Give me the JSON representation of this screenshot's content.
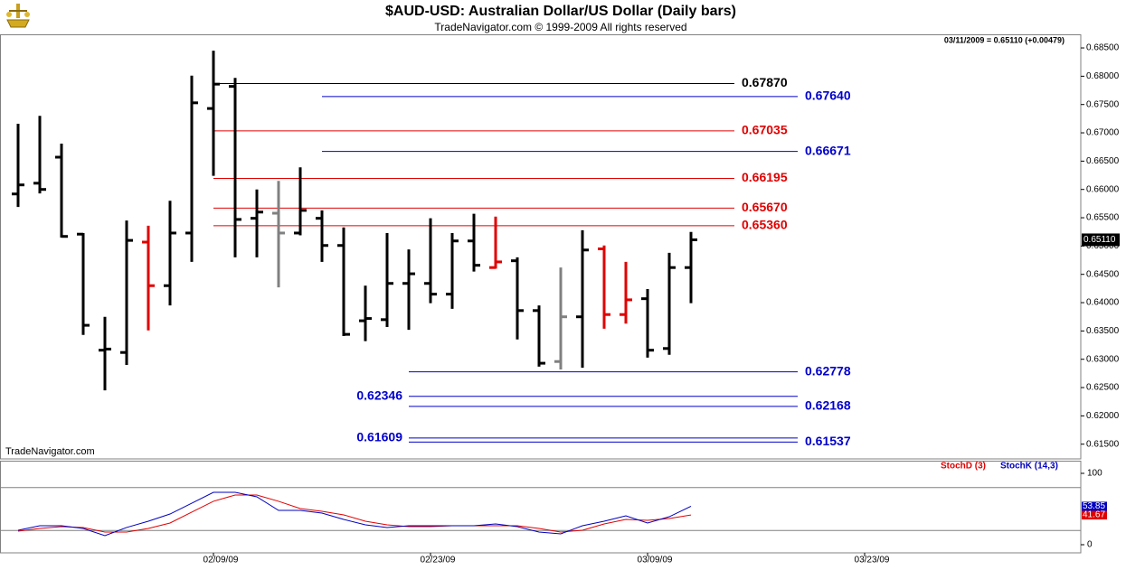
{
  "chart_data": [
    {
      "type": "ohlc",
      "title": "$AUD-USD:  Australian Dollar/US Dollar  (Daily bars)",
      "subtitle": "TradeNavigator.com © 1999-2009 All rights reserved",
      "header": "03/11/2009 = 0.65110 (+0.00479)",
      "watermark": "TradeNavigator.com",
      "x": [
        0,
        1,
        2,
        3,
        4,
        5,
        6,
        7,
        8,
        9,
        10,
        11,
        12,
        13,
        14,
        15,
        16,
        17,
        18,
        19,
        20,
        21,
        22,
        23,
        24,
        25,
        26,
        27,
        28,
        29,
        30,
        31
      ],
      "open": [
        0.6592,
        0.6611,
        0.6657,
        0.6521,
        0.6316,
        0.6312,
        0.6507,
        0.643,
        0.6523,
        0.6743,
        0.6782,
        0.6549,
        0.6558,
        0.6523,
        0.6549,
        0.6501,
        0.6368,
        0.637,
        0.6434,
        0.6434,
        0.6415,
        0.6509,
        0.6462,
        0.6474,
        0.6386,
        0.6296,
        0.6375,
        0.6495,
        0.6379,
        0.6407,
        0.6319,
        0.6462
      ],
      "high": [
        0.6716,
        0.673,
        0.6681,
        0.6523,
        0.6375,
        0.6545,
        0.6536,
        0.658,
        0.6801,
        0.6845,
        0.6797,
        0.66,
        0.6615,
        0.6639,
        0.6563,
        0.6533,
        0.643,
        0.6523,
        0.6494,
        0.6549,
        0.6523,
        0.6557,
        0.6552,
        0.648,
        0.6395,
        0.6462,
        0.6528,
        0.6501,
        0.6472,
        0.6424,
        0.6488,
        0.6525
      ],
      "low": [
        0.6569,
        0.6593,
        0.6515,
        0.6343,
        0.6245,
        0.629,
        0.6351,
        0.6395,
        0.6472,
        0.6624,
        0.648,
        0.648,
        0.6427,
        0.6519,
        0.6472,
        0.6341,
        0.6332,
        0.6357,
        0.6352,
        0.6399,
        0.6389,
        0.6455,
        0.646,
        0.6335,
        0.6287,
        0.6282,
        0.6285,
        0.6354,
        0.6363,
        0.6303,
        0.6308,
        0.6399
      ],
      "close": [
        0.6608,
        0.66,
        0.6517,
        0.636,
        0.6318,
        0.651,
        0.643,
        0.6523,
        0.6753,
        0.6786,
        0.6547,
        0.656,
        0.6523,
        0.6563,
        0.6501,
        0.6344,
        0.6372,
        0.6434,
        0.6451,
        0.6415,
        0.6509,
        0.6466,
        0.6472,
        0.6386,
        0.6293,
        0.6375,
        0.6493,
        0.6379,
        0.6405,
        0.6316,
        0.6462,
        0.6511
      ],
      "colors": [
        "#000000",
        "#000000",
        "#000000",
        "#000000",
        "#000000",
        "#000000",
        "#e00000",
        "#000000",
        "#000000",
        "#000000",
        "#000000",
        "#000000",
        "#808080",
        "#000000",
        "#000000",
        "#000000",
        "#000000",
        "#000000",
        "#000000",
        "#000000",
        "#000000",
        "#000000",
        "#e00000",
        "#000000",
        "#000000",
        "#808080",
        "#000000",
        "#e00000",
        "#e00000",
        "#000000",
        "#000000",
        "#000000"
      ],
      "xlim": [
        -0.8333,
        48.9583
      ],
      "ylim": [
        0.6124,
        0.6874
      ],
      "yticks": [
        {
          "value": 0.685,
          "label": "0.68500"
        },
        {
          "value": 0.68,
          "label": "0.68000"
        },
        {
          "value": 0.675,
          "label": "0.67500"
        },
        {
          "value": 0.67,
          "label": "0.67000"
        },
        {
          "value": 0.665,
          "label": "0.66500"
        },
        {
          "value": 0.66,
          "label": "0.66000"
        },
        {
          "value": 0.655,
          "label": "0.65500"
        },
        {
          "value": 0.65,
          "label": "0.65000"
        },
        {
          "value": 0.645,
          "label": "0.64500"
        },
        {
          "value": 0.64,
          "label": "0.64000"
        },
        {
          "value": 0.635,
          "label": "0.63500"
        },
        {
          "value": 0.63,
          "label": "0.63000"
        },
        {
          "value": 0.625,
          "label": "0.62500"
        },
        {
          "value": 0.62,
          "label": "0.62000"
        },
        {
          "value": 0.615,
          "label": "0.61500"
        }
      ],
      "last_label": "0.65110",
      "levels": [
        {
          "value": 0.6787,
          "label": "0.67870",
          "color": "#000000",
          "start": 9,
          "label_side": "right"
        },
        {
          "value": 0.6764,
          "label": "0.67640",
          "color": "#0000cc",
          "start": 14,
          "label_side": "right"
        },
        {
          "value": 0.67035,
          "label": "0.67035",
          "color": "#e00000",
          "start": 9,
          "label_side": "right"
        },
        {
          "value": 0.66671,
          "label": "0.66671",
          "color": "#0000cc",
          "start": 14,
          "label_side": "right"
        },
        {
          "value": 0.66195,
          "label": "0.66195",
          "color": "#e00000",
          "start": 9,
          "label_side": "right"
        },
        {
          "value": 0.6567,
          "label": "0.65670",
          "color": "#e00000",
          "start": 9,
          "label_side": "right"
        },
        {
          "value": 0.6536,
          "label": "0.65360",
          "color": "#e00000",
          "start": 9,
          "label_side": "right"
        },
        {
          "value": 0.62778,
          "label": "0.62778",
          "color": "#0000cc",
          "start": 18,
          "label_side": "right"
        },
        {
          "value": 0.62346,
          "label": "0.62346",
          "color": "#0000cc",
          "start": 18,
          "label_side": "left"
        },
        {
          "value": 0.62168,
          "label": "0.62168",
          "color": "#0000cc",
          "start": 18,
          "label_side": "right"
        },
        {
          "value": 0.61609,
          "label": "0.61609",
          "color": "#0000cc",
          "start": 18,
          "label_side": "left"
        },
        {
          "value": 0.61537,
          "label": "0.61537",
          "color": "#0000cc",
          "start": 18,
          "label_side": "right"
        }
      ]
    },
    {
      "type": "line",
      "x": [
        0,
        1,
        2,
        3,
        4,
        5,
        6,
        7,
        8,
        9,
        10,
        11,
        12,
        13,
        14,
        15,
        16,
        17,
        18,
        19,
        20,
        21,
        22,
        23,
        24,
        25,
        26,
        27,
        28,
        29,
        30,
        31
      ],
      "series": [
        {
          "name": "StochD (3)",
          "color": "#e00000",
          "values": [
            19.0,
            22.8,
            25.3,
            24.1,
            17.7,
            17.7,
            22.8,
            30.4,
            45.6,
            60.8,
            69.6,
            69.6,
            60.8,
            50.6,
            46.8,
            41.8,
            32.9,
            27.8,
            25.3,
            25.3,
            26.6,
            26.6,
            26.6,
            26.6,
            22.8,
            17.7,
            20.3,
            29.1,
            35.4,
            34.2,
            36.7,
            41.67
          ]
        },
        {
          "name": "StochK (14,3)",
          "color": "#0000c0",
          "values": [
            20.3,
            26.6,
            26.6,
            22.8,
            12.7,
            24.1,
            32.9,
            43.0,
            58.2,
            73.4,
            73.4,
            67.1,
            48.1,
            48.1,
            44.3,
            35.4,
            27.8,
            24.1,
            26.6,
            26.6,
            26.6,
            26.6,
            29.1,
            25.3,
            17.7,
            15.2,
            26.6,
            32.9,
            40.5,
            30.4,
            39.2,
            53.85
          ]
        }
      ],
      "xlim": [
        -0.8333,
        48.9583
      ],
      "xticks": [
        {
          "value": 9,
          "label": "02/09/09"
        },
        {
          "value": 19,
          "label": "02/23/09"
        },
        {
          "value": 29,
          "label": "03/09/09"
        },
        {
          "value": 39,
          "label": "03/23/09"
        }
      ],
      "ylim": [
        -11.4,
        117.7
      ],
      "yticks": [
        0,
        100
      ],
      "hlines": [
        20,
        80
      ]
    }
  ]
}
